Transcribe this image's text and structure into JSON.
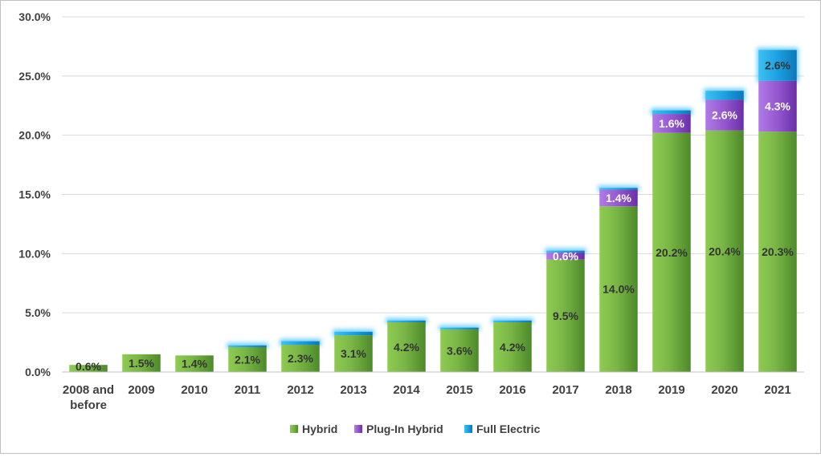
{
  "chart_data": {
    "type": "bar",
    "stacked": true,
    "title": "",
    "xlabel": "",
    "ylabel": "",
    "ylim": [
      0,
      30
    ],
    "yticks": [
      0,
      5,
      10,
      15,
      20,
      25,
      30
    ],
    "ytick_labels": [
      "0.0%",
      "5.0%",
      "10.0%",
      "15.0%",
      "20.0%",
      "25.0%",
      "30.0%"
    ],
    "grid": true,
    "legend_position": "bottom-center",
    "categories": [
      "2008 and before",
      "2009",
      "2010",
      "2011",
      "2012",
      "2013",
      "2014",
      "2015",
      "2016",
      "2017",
      "2018",
      "2019",
      "2020",
      "2021"
    ],
    "category_lines": [
      [
        "2008 and",
        "before"
      ],
      [
        "2009"
      ],
      [
        "2010"
      ],
      [
        "2011"
      ],
      [
        "2012"
      ],
      [
        "2013"
      ],
      [
        "2014"
      ],
      [
        "2015"
      ],
      [
        "2016"
      ],
      [
        "2017"
      ],
      [
        "2018"
      ],
      [
        "2019"
      ],
      [
        "2020"
      ],
      [
        "2021"
      ]
    ],
    "series": [
      {
        "name": "Hybrid",
        "color": "#7ab648",
        "values": [
          0.6,
          1.5,
          1.4,
          2.1,
          2.3,
          3.1,
          4.2,
          3.6,
          4.2,
          9.5,
          14.0,
          20.2,
          20.4,
          20.3
        ],
        "labels": [
          "0.6%",
          "1.5%",
          "1.4%",
          "2.1%",
          "2.3%",
          "3.1%",
          "4.2%",
          "3.6%",
          "4.2%",
          "9.5%",
          "14.0%",
          "20.2%",
          "20.4%",
          "20.3%"
        ]
      },
      {
        "name": "Plug-In Hybrid",
        "color": "#9b5fd6",
        "values": [
          0,
          0,
          0,
          0,
          0,
          0,
          0,
          0,
          0,
          0.6,
          1.4,
          1.6,
          2.6,
          4.3
        ],
        "labels": [
          "",
          "",
          "",
          "",
          "",
          "",
          "",
          "",
          "",
          "0.6%",
          "1.4%",
          "1.6%",
          "2.6%",
          "4.3%"
        ]
      },
      {
        "name": "Full Electric",
        "color": "#1ba1e2",
        "values": [
          0,
          0,
          0,
          0.15,
          0.3,
          0.3,
          0.15,
          0.15,
          0.15,
          0.15,
          0.15,
          0.3,
          0.75,
          2.6
        ],
        "labels": [
          "",
          "",
          "",
          "",
          "",
          "",
          "",
          "",
          "",
          "",
          "",
          "",
          "",
          "2.6%"
        ]
      }
    ]
  }
}
